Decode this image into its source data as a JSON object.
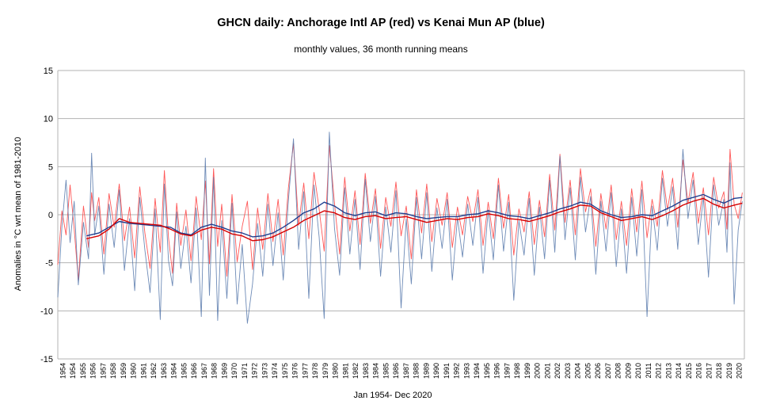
{
  "chart_data": {
    "type": "line",
    "title": "GHCN daily: Anchorage Intl AP (red) vs Kenai Mun AP (blue)",
    "subtitle": "monthly values, 36 month running means",
    "xlabel": "Jan 1954- Dec 2020",
    "ylabel": "Anomalies in °C wrt mean of 1981-2010",
    "ylim": [
      -15,
      15
    ],
    "yticks": [
      -15,
      -10,
      -5,
      0,
      5,
      10,
      15
    ],
    "xlim": [
      1954,
      2021
    ],
    "x_tick_labels": [
      "1954",
      "1954",
      "1955",
      "1956",
      "1957",
      "1958",
      "1959",
      "1960",
      "1961",
      "1962",
      "1963",
      "1964",
      "1965",
      "1966",
      "1967",
      "1968",
      "1969",
      "1970",
      "1971",
      "1972",
      "1973",
      "1974",
      "1975",
      "1976",
      "1977",
      "1978",
      "1979",
      "1980",
      "1981",
      "1982",
      "1983",
      "1984",
      "1985",
      "1986",
      "1987",
      "1988",
      "1989",
      "1990",
      "1991",
      "1992",
      "1993",
      "1994",
      "1995",
      "1996",
      "1997",
      "1998",
      "1999",
      "2000",
      "2001",
      "2002",
      "2003",
      "2004",
      "2005",
      "2006",
      "2007",
      "2008",
      "2009",
      "2010",
      "2011",
      "2012",
      "2013",
      "2014",
      "2015",
      "2016",
      "2017",
      "2018",
      "2019",
      "2020"
    ],
    "grid": true,
    "legend": "none",
    "colors": {
      "red": "#ff3b3b",
      "red_mean": "#d40000",
      "blue": "#5577aa",
      "blue_mean": "#1f3f8f",
      "grid": "#b3b3b3"
    },
    "series": [
      {
        "name": "Anchorage Intl AP (red)",
        "x": [
          1954.0,
          1954.4,
          1954.8,
          1955.2,
          1955.6,
          1956.0,
          1956.5,
          1957.0,
          1957.3,
          1957.6,
          1958.0,
          1958.5,
          1959.0,
          1959.5,
          1960.0,
          1960.5,
          1961.0,
          1961.5,
          1962.0,
          1962.5,
          1963.0,
          1963.5,
          1964.0,
          1964.4,
          1964.8,
          1965.2,
          1965.6,
          1966.0,
          1966.5,
          1967.0,
          1967.5,
          1968.0,
          1968.4,
          1968.8,
          1969.2,
          1969.6,
          1970.0,
          1970.5,
          1971.0,
          1971.5,
          1972.0,
          1972.5,
          1973.0,
          1973.5,
          1974.0,
          1974.5,
          1975.0,
          1975.5,
          1976.0,
          1976.5,
          1977.0,
          1977.5,
          1978.0,
          1978.5,
          1979.0,
          1979.5,
          1980.0,
          1980.5,
          1981.0,
          1981.5,
          1982.0,
          1982.5,
          1983.0,
          1983.5,
          1984.0,
          1984.5,
          1985.0,
          1985.5,
          1986.0,
          1986.5,
          1987.0,
          1987.5,
          1988.0,
          1988.5,
          1989.0,
          1989.5,
          1990.0,
          1990.5,
          1991.0,
          1991.5,
          1992.0,
          1992.5,
          1993.0,
          1993.5,
          1994.0,
          1994.5,
          1995.0,
          1995.5,
          1996.0,
          1996.5,
          1997.0,
          1997.5,
          1998.0,
          1998.5,
          1999.0,
          1999.5,
          2000.0,
          2000.5,
          2001.0,
          2001.5,
          2002.0,
          2002.5,
          2003.0,
          2003.5,
          2004.0,
          2004.5,
          2005.0,
          2005.5,
          2006.0,
          2006.5,
          2007.0,
          2007.5,
          2008.0,
          2008.5,
          2009.0,
          2009.5,
          2010.0,
          2010.5,
          2011.0,
          2011.5,
          2012.0,
          2012.5,
          2013.0,
          2013.5,
          2014.0,
          2014.5,
          2015.0,
          2015.5,
          2016.0,
          2016.5,
          2017.0,
          2017.5,
          2018.0,
          2018.5,
          2019.0,
          2019.3,
          2019.6,
          2020.0,
          2020.4,
          2020.8
        ],
        "values": [
          -5.2,
          0.4,
          -2.1,
          3.1,
          -1.5,
          -6.8,
          0.9,
          -3.4,
          2.3,
          -0.6,
          1.8,
          -4.1,
          2.2,
          -1.3,
          3.2,
          -2.7,
          0.8,
          -4.5,
          2.9,
          -1.9,
          -5.6,
          1.7,
          -3.9,
          4.6,
          -2.4,
          -6.1,
          1.2,
          -3.2,
          0.5,
          -4.8,
          1.9,
          -2.6,
          3.5,
          -5.1,
          4.8,
          -3.3,
          1.1,
          -6.4,
          2.1,
          -4.9,
          -1.2,
          1.4,
          -5.7,
          0.7,
          -3.6,
          2.2,
          -2.8,
          1.6,
          -4.2,
          2.8,
          7.4,
          -1.1,
          3.3,
          -2.5,
          4.4,
          0.6,
          -3.8,
          7.2,
          1.2,
          -4.1,
          3.9,
          -1.7,
          2.5,
          -3.1,
          4.3,
          -0.9,
          2.7,
          -3.5,
          1.8,
          -1.2,
          3.4,
          -2.2,
          0.9,
          -4.6,
          2.6,
          -1.9,
          3.2,
          -2.8,
          1.7,
          -1.1,
          2.3,
          -3.4,
          0.8,
          -2.1,
          1.9,
          -0.7,
          2.6,
          -3.2,
          1.3,
          -2.5,
          3.8,
          -1.4,
          2.1,
          -4.2,
          0.6,
          -1.8,
          2.4,
          -3.1,
          1.5,
          -2.3,
          4.2,
          -1.6,
          6.3,
          -0.8,
          3.6,
          -2.1,
          4.8,
          0.3,
          2.7,
          -3.3,
          2.2,
          -1.5,
          3.1,
          -2.6,
          1.4,
          -3.2,
          2.7,
          -1.8,
          3.5,
          -2.4,
          1.6,
          -1.2,
          4.6,
          0.5,
          3.8,
          -1.3,
          5.7,
          1.2,
          4.4,
          -0.9,
          2.8,
          -2.1,
          3.9,
          0.7,
          2.4,
          -1.5,
          6.8,
          1.1,
          -0.4,
          2.3
        ]
      },
      {
        "name": "Kenai Mun AP (blue)",
        "x": [
          1954.0,
          1954.4,
          1954.8,
          1955.2,
          1955.6,
          1956.0,
          1956.5,
          1957.0,
          1957.3,
          1957.6,
          1958.0,
          1958.5,
          1959.0,
          1959.5,
          1960.0,
          1960.5,
          1961.0,
          1961.5,
          1962.0,
          1962.5,
          1963.0,
          1963.5,
          1964.0,
          1964.4,
          1964.8,
          1965.2,
          1965.6,
          1966.0,
          1966.5,
          1967.0,
          1967.5,
          1968.0,
          1968.4,
          1968.8,
          1969.2,
          1969.6,
          1970.0,
          1970.5,
          1971.0,
          1971.5,
          1972.0,
          1972.5,
          1973.0,
          1973.5,
          1974.0,
          1974.5,
          1975.0,
          1975.5,
          1976.0,
          1976.5,
          1977.0,
          1977.5,
          1978.0,
          1978.5,
          1979.0,
          1979.5,
          1980.0,
          1980.5,
          1981.0,
          1981.5,
          1982.0,
          1982.5,
          1983.0,
          1983.5,
          1984.0,
          1984.5,
          1985.0,
          1985.5,
          1986.0,
          1986.5,
          1987.0,
          1987.5,
          1988.0,
          1988.5,
          1989.0,
          1989.5,
          1990.0,
          1990.5,
          1991.0,
          1991.5,
          1992.0,
          1992.5,
          1993.0,
          1993.5,
          1994.0,
          1994.5,
          1995.0,
          1995.5,
          1996.0,
          1996.5,
          1997.0,
          1997.5,
          1998.0,
          1998.5,
          1999.0,
          1999.5,
          2000.0,
          2000.5,
          2001.0,
          2001.5,
          2002.0,
          2002.5,
          2003.0,
          2003.5,
          2004.0,
          2004.5,
          2005.0,
          2005.5,
          2006.0,
          2006.5,
          2007.0,
          2007.5,
          2008.0,
          2008.5,
          2009.0,
          2009.5,
          2010.0,
          2010.5,
          2011.0,
          2011.5,
          2012.0,
          2012.5,
          2013.0,
          2013.5,
          2014.0,
          2014.5,
          2015.0,
          2015.5,
          2016.0,
          2016.5,
          2017.0,
          2017.5,
          2018.0,
          2018.5,
          2019.0,
          2019.3,
          2019.6,
          2020.0,
          2020.4,
          2020.8
        ],
        "values": [
          -8.6,
          -1.2,
          3.6,
          -2.9,
          1.4,
          -7.3,
          -0.8,
          -4.6,
          6.4,
          -2.1,
          0.9,
          -6.2,
          1.1,
          -3.4,
          2.6,
          -5.8,
          -0.4,
          -7.9,
          1.8,
          -3.7,
          -8.1,
          0.6,
          -10.9,
          3.2,
          -4.8,
          -7.4,
          0.3,
          -5.6,
          -1.2,
          -7.1,
          0.7,
          -10.6,
          5.9,
          -8.4,
          3.9,
          -11.0,
          -0.6,
          -8.7,
          1.2,
          -9.3,
          -3.1,
          -11.3,
          -7.2,
          -0.9,
          -6.4,
          1.1,
          -5.3,
          0.2,
          -6.8,
          1.5,
          7.9,
          -3.6,
          2.4,
          -8.7,
          3.1,
          -2.3,
          -10.8,
          8.6,
          -1.4,
          -6.3,
          2.8,
          -4.1,
          1.6,
          -5.7,
          3.7,
          -2.8,
          1.9,
          -6.4,
          0.8,
          -3.9,
          2.5,
          -9.7,
          -0.4,
          -7.2,
          1.8,
          -4.6,
          2.3,
          -5.9,
          0.7,
          -3.5,
          1.6,
          -6.8,
          -0.3,
          -4.4,
          1.1,
          -3.2,
          1.8,
          -6.1,
          0.5,
          -4.7,
          3.1,
          -3.8,
          1.3,
          -8.9,
          -0.6,
          -4.2,
          1.7,
          -6.3,
          0.8,
          -4.6,
          3.6,
          -3.9,
          6.1,
          -2.6,
          2.8,
          -4.7,
          3.9,
          -1.8,
          1.9,
          -6.2,
          1.4,
          -3.8,
          2.3,
          -5.4,
          0.6,
          -6.1,
          1.8,
          -4.3,
          2.6,
          -10.6,
          0.9,
          -3.7,
          3.8,
          -1.2,
          2.9,
          -3.6,
          6.8,
          -0.4,
          3.6,
          -3.1,
          1.9,
          -6.5,
          3.1,
          -1.1,
          1.6,
          -3.9,
          5.4,
          -9.3,
          -1.6,
          1.4
        ]
      },
      {
        "name": "",
        "x": [
          1956.8,
          1958.0,
          1959.0,
          1960.0,
          1961.0,
          1962.0,
          1963.0,
          1964.0,
          1965.0,
          1966.0,
          1967.0,
          1968.0,
          1969.0,
          1970.0,
          1971.0,
          1972.0,
          1973.0,
          1974.0,
          1975.0,
          1976.0,
          1977.0,
          1978.0,
          1979.0,
          1980.0,
          1981.0,
          1982.0,
          1983.0,
          1984.0,
          1985.0,
          1986.0,
          1987.0,
          1988.0,
          1989.0,
          1990.0,
          1991.0,
          1992.0,
          1993.0,
          1994.0,
          1995.0,
          1996.0,
          1997.0,
          1998.0,
          1999.0,
          2000.0,
          2001.0,
          2002.0,
          2003.0,
          2004.0,
          2005.0,
          2006.0,
          2007.0,
          2008.0,
          2009.0,
          2010.0,
          2011.0,
          2012.0,
          2013.0,
          2014.0,
          2015.0,
          2016.0,
          2017.0,
          2018.0,
          2019.0,
          2020.0,
          2020.8
        ],
        "values": [
          -2.2,
          -1.9,
          -1.3,
          -0.7,
          -0.9,
          -1.0,
          -1.1,
          -1.2,
          -1.3,
          -1.9,
          -2.1,
          -1.3,
          -1.0,
          -1.3,
          -1.7,
          -1.9,
          -2.3,
          -2.2,
          -1.9,
          -1.3,
          -0.6,
          0.2,
          0.6,
          1.3,
          0.9,
          0.2,
          -0.1,
          0.2,
          0.3,
          -0.1,
          0.2,
          0.1,
          -0.2,
          -0.4,
          -0.3,
          -0.2,
          -0.2,
          0.0,
          0.1,
          0.4,
          0.2,
          -0.1,
          -0.2,
          -0.4,
          -0.1,
          0.2,
          0.6,
          0.9,
          1.3,
          1.1,
          0.4,
          0.0,
          -0.3,
          -0.2,
          0.0,
          -0.1,
          0.4,
          0.9,
          1.5,
          1.8,
          2.1,
          1.6,
          1.2,
          1.7,
          1.8
        ]
      },
      {
        "name": "",
        "x": [
          1956.8,
          1958.0,
          1959.0,
          1960.0,
          1961.0,
          1962.0,
          1963.0,
          1964.0,
          1965.0,
          1966.0,
          1967.0,
          1968.0,
          1969.0,
          1970.0,
          1971.0,
          1972.0,
          1973.0,
          1974.0,
          1975.0,
          1976.0,
          1977.0,
          1978.0,
          1979.0,
          1980.0,
          1981.0,
          1982.0,
          1983.0,
          1984.0,
          1985.0,
          1986.0,
          1987.0,
          1988.0,
          1989.0,
          1990.0,
          1991.0,
          1992.0,
          1993.0,
          1994.0,
          1995.0,
          1996.0,
          1997.0,
          1998.0,
          1999.0,
          2000.0,
          2001.0,
          2002.0,
          2003.0,
          2004.0,
          2005.0,
          2006.0,
          2007.0,
          2008.0,
          2009.0,
          2010.0,
          2011.0,
          2012.0,
          2013.0,
          2014.0,
          2015.0,
          2016.0,
          2017.0,
          2018.0,
          2019.0,
          2020.0,
          2020.8
        ],
        "values": [
          -2.5,
          -2.2,
          -1.5,
          -0.4,
          -0.8,
          -0.9,
          -1.0,
          -1.1,
          -1.5,
          -2.0,
          -2.2,
          -1.6,
          -1.3,
          -1.5,
          -2.0,
          -2.2,
          -2.7,
          -2.6,
          -2.3,
          -1.8,
          -1.3,
          -0.6,
          -0.1,
          0.4,
          0.2,
          -0.3,
          -0.5,
          -0.2,
          -0.1,
          -0.4,
          -0.3,
          -0.2,
          -0.5,
          -0.8,
          -0.6,
          -0.4,
          -0.5,
          -0.3,
          -0.2,
          0.1,
          -0.1,
          -0.4,
          -0.5,
          -0.7,
          -0.4,
          -0.1,
          0.3,
          0.6,
          1.0,
          0.9,
          0.2,
          -0.2,
          -0.6,
          -0.4,
          -0.2,
          -0.5,
          -0.1,
          0.4,
          1.0,
          1.4,
          1.7,
          1.1,
          0.7,
          1.0,
          1.2
        ]
      }
    ]
  }
}
